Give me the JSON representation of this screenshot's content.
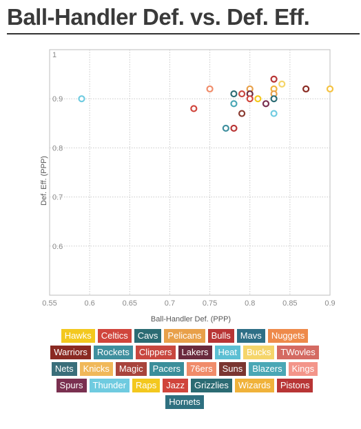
{
  "title": "Ball-Handler Def. vs. Def. Eff.",
  "chart_data": {
    "type": "scatter",
    "xlabel": "Ball-Handler Def. (PPP)",
    "ylabel": "Def. Eff. (PPP)",
    "xlim": [
      0.55,
      0.9
    ],
    "ylim": [
      0.5,
      1.0
    ],
    "x_ticks": [
      "0.55",
      "0.6",
      "0.65",
      "0.7",
      "0.75",
      "0.8",
      "0.85",
      "0.9"
    ],
    "y_ticks": [
      "0.6",
      "0.7",
      "0.8",
      "0.9",
      "1"
    ],
    "grid": true,
    "marker": "hollow-circle",
    "points": [
      {
        "x": 0.59,
        "y": 0.9,
        "color": "#6fcbe0"
      },
      {
        "x": 0.73,
        "y": 0.88,
        "color": "#d0453c"
      },
      {
        "x": 0.75,
        "y": 0.92,
        "color": "#f08c6a"
      },
      {
        "x": 0.77,
        "y": 0.84,
        "color": "#3f8f9e"
      },
      {
        "x": 0.78,
        "y": 0.84,
        "color": "#b83535"
      },
      {
        "x": 0.78,
        "y": 0.89,
        "color": "#4aa7b5"
      },
      {
        "x": 0.78,
        "y": 0.91,
        "color": "#2b6b73"
      },
      {
        "x": 0.79,
        "y": 0.87,
        "color": "#8a3a2f"
      },
      {
        "x": 0.79,
        "y": 0.91,
        "color": "#c8473f"
      },
      {
        "x": 0.8,
        "y": 0.92,
        "color": "#e8a04a"
      },
      {
        "x": 0.8,
        "y": 0.91,
        "color": "#6a2a3d"
      },
      {
        "x": 0.8,
        "y": 0.9,
        "color": "#d0453c"
      },
      {
        "x": 0.81,
        "y": 0.9,
        "color": "#f3c81e"
      },
      {
        "x": 0.82,
        "y": 0.89,
        "color": "#7a3050"
      },
      {
        "x": 0.83,
        "y": 0.94,
        "color": "#b83535"
      },
      {
        "x": 0.83,
        "y": 0.92,
        "color": "#f0b23a"
      },
      {
        "x": 0.83,
        "y": 0.91,
        "color": "#e8a04a"
      },
      {
        "x": 0.83,
        "y": 0.9,
        "color": "#2b6b73"
      },
      {
        "x": 0.83,
        "y": 0.87,
        "color": "#6fcbe0"
      },
      {
        "x": 0.84,
        "y": 0.93,
        "color": "#f5d56a"
      },
      {
        "x": 0.87,
        "y": 0.92,
        "color": "#8a2a22"
      },
      {
        "x": 0.9,
        "y": 0.92,
        "color": "#f5c240"
      }
    ],
    "legend_placement": "bottom",
    "legend": [
      {
        "name": "Hawks",
        "color": "#f3c81e"
      },
      {
        "name": "Celtics",
        "color": "#d0453c"
      },
      {
        "name": "Cavs",
        "color": "#2b6b73"
      },
      {
        "name": "Pelicans",
        "color": "#e8a04a"
      },
      {
        "name": "Bulls",
        "color": "#b83535"
      },
      {
        "name": "Mavs",
        "color": "#2e6f86"
      },
      {
        "name": "Nuggets",
        "color": "#ee8a4a"
      },
      {
        "name": "Warriors",
        "color": "#8a2a22"
      },
      {
        "name": "Rockets",
        "color": "#3f8f9e"
      },
      {
        "name": "Clippers",
        "color": "#c8473f"
      },
      {
        "name": "Lakers",
        "color": "#6a2a3d"
      },
      {
        "name": "Heat",
        "color": "#5bbfd3"
      },
      {
        "name": "Bucks",
        "color": "#f5d56a"
      },
      {
        "name": "TWovles",
        "color": "#d46a62"
      },
      {
        "name": "Nets",
        "color": "#3a6e7a"
      },
      {
        "name": "Knicks",
        "color": "#f0b85a"
      },
      {
        "name": "Magic",
        "color": "#a8443c"
      },
      {
        "name": "Pacers",
        "color": "#3a8e9a"
      },
      {
        "name": "76ers",
        "color": "#f08c6a"
      },
      {
        "name": "Suns",
        "color": "#7a3530"
      },
      {
        "name": "Blazers",
        "color": "#4aa7b5"
      },
      {
        "name": "Kings",
        "color": "#f3958a"
      },
      {
        "name": "Spurs",
        "color": "#7a3050"
      },
      {
        "name": "Thunder",
        "color": "#6fcbe0"
      },
      {
        "name": "Raps",
        "color": "#f3c81e"
      },
      {
        "name": "Jazz",
        "color": "#d0453c"
      },
      {
        "name": "Grizzlies",
        "color": "#2b6b73"
      },
      {
        "name": "Wizards",
        "color": "#f0b23a"
      },
      {
        "name": "Pistons",
        "color": "#b83535"
      },
      {
        "name": "Hornets",
        "color": "#2e7080"
      }
    ]
  }
}
